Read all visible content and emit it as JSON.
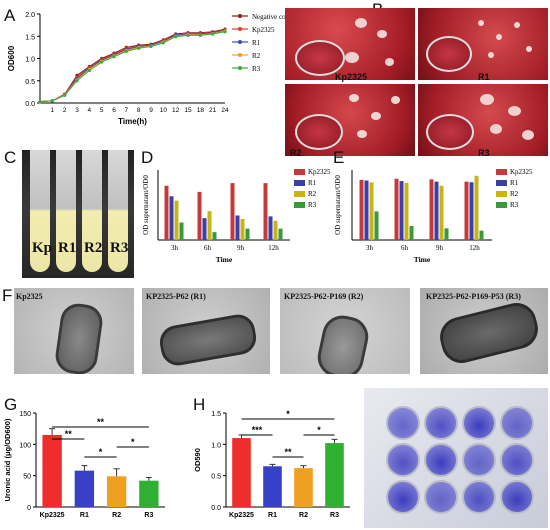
{
  "panels": {
    "A": {
      "label": "A",
      "chart_data": {
        "type": "line",
        "ylabel": "OD600",
        "xlabel": "Time(h)",
        "x": [
          0,
          1,
          2,
          3,
          4,
          5,
          6,
          7,
          8,
          9,
          10,
          12,
          15,
          18,
          21,
          24
        ],
        "xticks": [
          1,
          2,
          3,
          4,
          5,
          6,
          7,
          8,
          9,
          10,
          12,
          15,
          18,
          21,
          24
        ],
        "ylim": [
          0,
          2.0
        ],
        "yticks": [
          "0.0",
          "0.5",
          "1.0",
          "1.5",
          "2.0"
        ],
        "series": [
          {
            "name": "Negative control",
            "color": "#8b1a1a",
            "values": [
              0.03,
              0.05,
              0.2,
              0.62,
              0.82,
              1.0,
              1.12,
              1.25,
              1.3,
              1.32,
              1.42,
              1.55,
              1.58,
              1.58,
              1.6,
              1.66
            ]
          },
          {
            "name": "Kp2325",
            "color": "#e23b2e",
            "values": [
              0.03,
              0.05,
              0.2,
              0.58,
              0.8,
              0.98,
              1.1,
              1.22,
              1.28,
              1.3,
              1.4,
              1.53,
              1.56,
              1.56,
              1.58,
              1.64
            ]
          },
          {
            "name": "R1",
            "color": "#3a4db0",
            "values": [
              0.03,
              0.05,
              0.19,
              0.55,
              0.78,
              0.96,
              1.08,
              1.2,
              1.27,
              1.3,
              1.38,
              1.52,
              1.55,
              1.55,
              1.57,
              1.63
            ]
          },
          {
            "name": "R2",
            "color": "#f0a020",
            "values": [
              0.03,
              0.05,
              0.18,
              0.52,
              0.76,
              0.94,
              1.06,
              1.18,
              1.25,
              1.28,
              1.37,
              1.5,
              1.54,
              1.53,
              1.56,
              1.62
            ]
          },
          {
            "name": "R3",
            "color": "#3da83d",
            "values": [
              0.03,
              0.05,
              0.17,
              0.5,
              0.73,
              0.92,
              1.04,
              1.16,
              1.23,
              1.27,
              1.35,
              1.49,
              1.52,
              1.52,
              1.55,
              1.6
            ]
          }
        ]
      }
    },
    "B": {
      "label": "B",
      "captions": [
        "Kp2325",
        "R1",
        "R2",
        "R3"
      ]
    },
    "C": {
      "label": "C",
      "tube_labels": [
        "Kp",
        "R1",
        "R2",
        "R3"
      ]
    },
    "D": {
      "label": "D",
      "chart_data": {
        "type": "bar",
        "ylabel": "OD supernatant/OD0",
        "xlabel": "Time",
        "categories": [
          "3h",
          "6h",
          "9h",
          "12h"
        ],
        "ylim": [
          0,
          0.8
        ],
        "series": [
          {
            "name": "Kp2325",
            "color": "#c43a3a",
            "values": [
              0.62,
              0.55,
              0.65,
              0.65
            ]
          },
          {
            "name": "R1",
            "color": "#3b3fa8",
            "values": [
              0.5,
              0.25,
              0.28,
              0.27
            ]
          },
          {
            "name": "R2",
            "color": "#c8b417",
            "values": [
              0.45,
              0.33,
              0.24,
              0.22
            ]
          },
          {
            "name": "R3",
            "color": "#3a9a3a",
            "values": [
              0.2,
              0.09,
              0.13,
              0.13
            ]
          }
        ]
      }
    },
    "E": {
      "label": "E",
      "chart_data": {
        "type": "bar",
        "ylabel": "OD supernatant/OD0",
        "xlabel": "Time",
        "categories": [
          "3h",
          "6h",
          "9h",
          "12h"
        ],
        "ylim": [
          0,
          1.2
        ],
        "series": [
          {
            "name": "Kp2325",
            "color": "#c43a3a",
            "values": [
              1.03,
              1.05,
              1.04,
              1.0
            ]
          },
          {
            "name": "R1",
            "color": "#3b3fa8",
            "values": [
              1.02,
              1.01,
              1.0,
              0.99
            ]
          },
          {
            "name": "R2",
            "color": "#c8b417",
            "values": [
              0.99,
              0.98,
              0.93,
              1.1
            ]
          },
          {
            "name": "R3",
            "color": "#3a9a3a",
            "values": [
              0.49,
              0.24,
              0.2,
              0.16
            ]
          }
        ]
      }
    },
    "F": {
      "label": "F",
      "captions": [
        "Kp2325",
        "KP2325-P62 (R1)",
        "KP2325-P62-P169 (R2)",
        "KP2325-P62-P169-P53 (R3)"
      ]
    },
    "G": {
      "label": "G",
      "chart_data": {
        "type": "bar",
        "ylabel": "Uronic acid (μg/OD600)",
        "categories": [
          "Kp2325",
          "R1",
          "R2",
          "R3"
        ],
        "values": [
          115,
          58,
          49,
          42
        ],
        "errors": [
          10,
          8,
          12,
          5
        ],
        "colors": [
          "#f02d2d",
          "#3940c8",
          "#f0a020",
          "#30b030"
        ],
        "ylim": [
          0,
          150
        ],
        "yticks": [
          "0",
          "50",
          "100",
          "150"
        ],
        "significance": [
          "**",
          "**",
          "*",
          "*"
        ]
      }
    },
    "H": {
      "label": "H",
      "chart_data": {
        "type": "bar",
        "ylabel": "OD590",
        "categories": [
          "Kp2325",
          "R1",
          "R2",
          "R3"
        ],
        "values": [
          1.1,
          0.65,
          0.62,
          1.02
        ],
        "errors": [
          0.05,
          0.03,
          0.04,
          0.06
        ],
        "colors": [
          "#f02d2d",
          "#3940c8",
          "#f0a020",
          "#30b030"
        ],
        "ylim": [
          0,
          1.5
        ],
        "yticks": [
          "0.0",
          "0.5",
          "1.0",
          "1.5"
        ],
        "significance": [
          "***",
          "*",
          "**",
          "*"
        ]
      }
    },
    "I": {
      "label": "I"
    }
  }
}
